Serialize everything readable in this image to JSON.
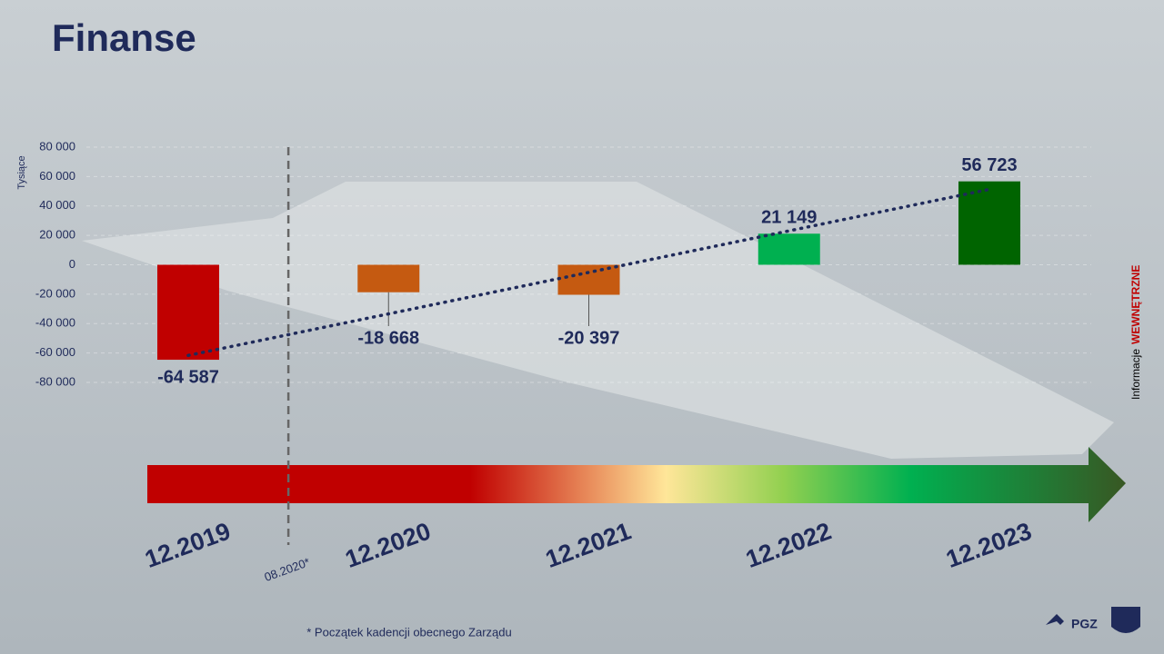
{
  "title": "Finanse",
  "chart_data": {
    "type": "bar",
    "y_label": "Tysiące",
    "categories": [
      "12.2019",
      "12.2020",
      "12.2021",
      "12.2022",
      "12.2023"
    ],
    "values": [
      -64587,
      -18668,
      -20397,
      21149,
      56723
    ],
    "value_labels": [
      "-64 587",
      "-18 668",
      "-20 397",
      "21 149",
      "56 723"
    ],
    "colors": [
      "#c00000",
      "#c55a11",
      "#c55a11",
      "#00b050",
      "#006400"
    ],
    "ylim": [
      -80000,
      80000
    ],
    "yticks": [
      {
        "value": -80000,
        "label": "-80 000"
      },
      {
        "value": -60000,
        "label": "-60 000"
      },
      {
        "value": -40000,
        "label": "-40 000"
      },
      {
        "value": -20000,
        "label": "-20 000"
      },
      0,
      {
        "value": 20000,
        "label": "20 000"
      },
      {
        "value": 40000,
        "label": "40 000"
      },
      {
        "value": 60000,
        "label": "60 000"
      },
      {
        "value": 80000,
        "label": "80 000"
      }
    ],
    "trendline": true,
    "annotation": "08.2020*"
  },
  "footnote": "* Początek kadencji obecnego Zarządu",
  "classification": {
    "label": "Informacje",
    "level": "WEWNĘTRZNE"
  },
  "logo": "PGZ"
}
